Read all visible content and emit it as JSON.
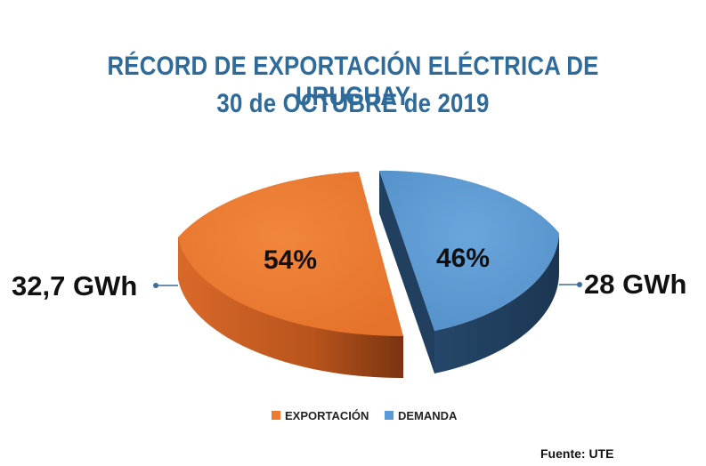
{
  "colors": {
    "title": "#2e6a9a",
    "exportacion_top": "#ec7a30",
    "exportacion_side": "#b5501a",
    "demanda_top": "#5b9bd5",
    "demanda_side": "#1e3e5e"
  },
  "chart_data": {
    "type": "pie",
    "title": "RÉCORD DE EXPORTACIÓN ELÉCTRICA DE URUGUAY",
    "subtitle": "30 de OCTUBRE de 2019",
    "slices": [
      {
        "name": "EXPORTACIÓN",
        "percent_label": "54%",
        "value_label": "32,7 GWh",
        "value": 32.7,
        "percent": 54
      },
      {
        "name": "DEMANDA",
        "percent_label": "46%",
        "value_label": "28 GWh",
        "value": 28,
        "percent": 46
      }
    ],
    "legend_position": "bottom",
    "style": "3d-exploded"
  },
  "source": "Fuente: UTE"
}
